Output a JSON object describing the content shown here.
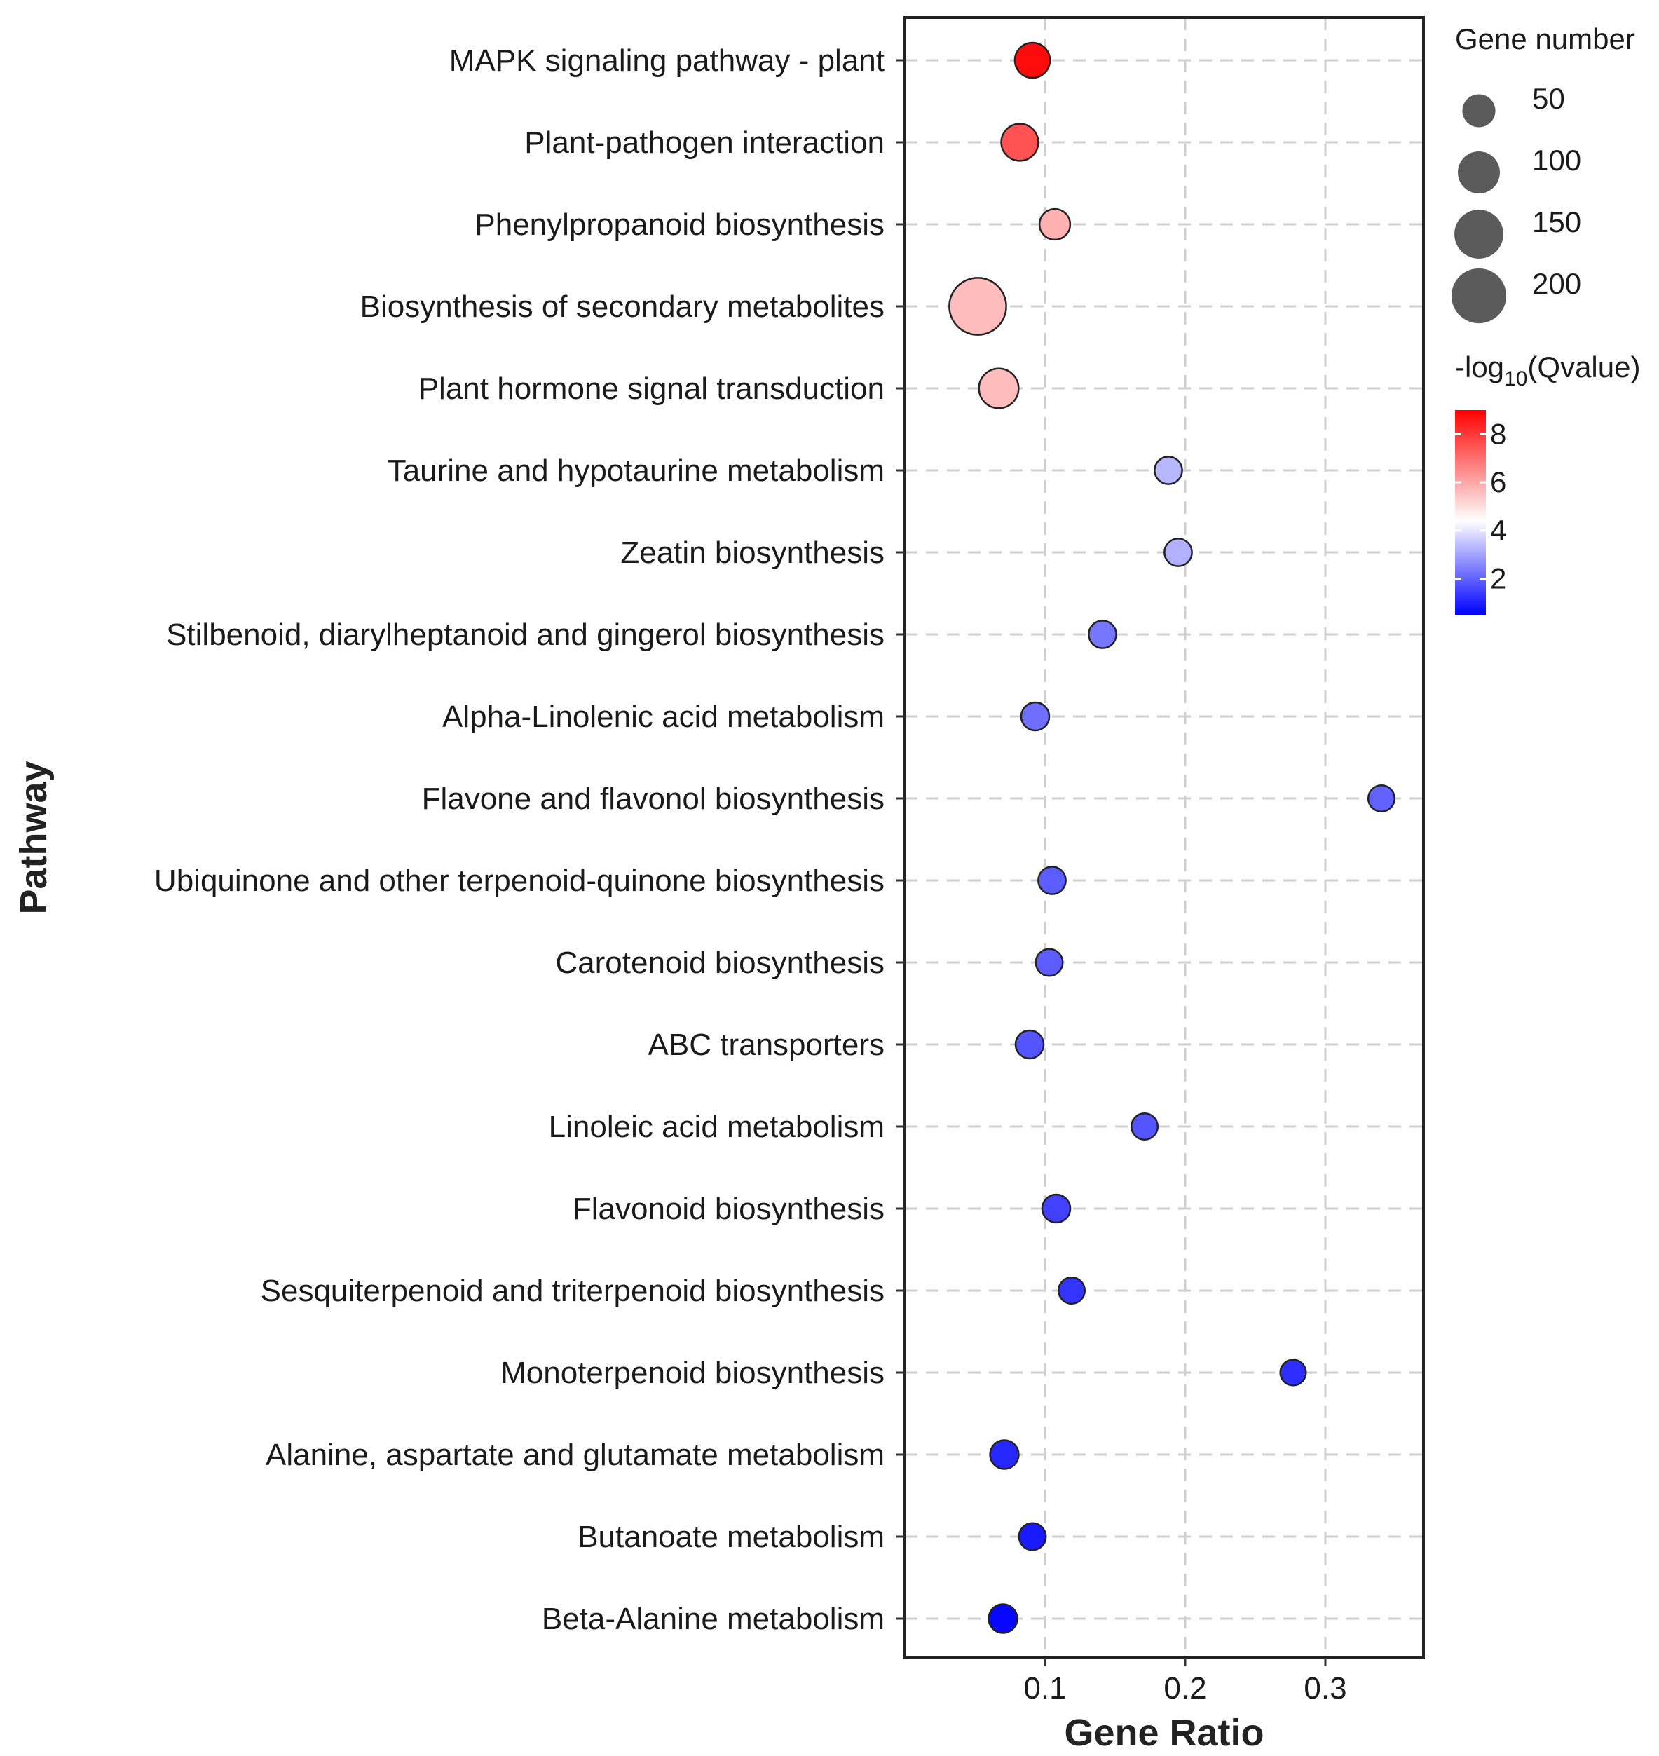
{
  "chart_data": {
    "type": "scatter",
    "title": "",
    "xlabel": "Gene Ratio",
    "ylabel": "Pathway",
    "xlim": [
      0,
      0.37
    ],
    "xticks": [
      0.1,
      0.2,
      0.3
    ],
    "xtick_labels": [
      "0.1",
      "0.2",
      "0.3"
    ],
    "grid": true,
    "categories": [
      "MAPK signaling pathway - plant",
      "Plant-pathogen interaction",
      "Phenylpropanoid biosynthesis",
      "Biosynthesis of secondary metabolites",
      "Plant hormone signal transduction",
      "Taurine and hypotaurine metabolism",
      "Zeatin biosynthesis",
      "Stilbenoid, diarylheptanoid and gingerol biosynthesis",
      "Alpha-Linolenic acid metabolism",
      "Flavone and flavonol biosynthesis",
      "Ubiquinone and other terpenoid-quinone biosynthesis",
      "Carotenoid biosynthesis",
      "ABC transporters",
      "Linoleic acid metabolism",
      "Flavonoid biosynthesis",
      "Sesquiterpenoid and triterpenoid biosynthesis",
      "Monoterpenoid biosynthesis",
      "Alanine, aspartate and glutamate metabolism",
      "Butanoate metabolism",
      "Beta-Alanine metabolism"
    ],
    "gene_ratio": [
      0.091,
      0.082,
      0.107,
      0.052,
      0.067,
      0.188,
      0.195,
      0.141,
      0.093,
      0.34,
      0.105,
      0.103,
      0.089,
      0.171,
      0.108,
      0.119,
      0.277,
      0.071,
      0.091,
      0.07
    ],
    "gene_number": [
      60,
      70,
      40,
      220,
      85,
      28,
      28,
      28,
      30,
      24,
      28,
      26,
      30,
      24,
      30,
      24,
      22,
      32,
      26,
      32
    ],
    "neg_log10_q": [
      8.8,
      7.5,
      5.8,
      5.6,
      5.6,
      3.3,
      3.2,
      2.3,
      2.2,
      2.0,
      1.9,
      1.9,
      1.8,
      1.8,
      1.5,
      1.3,
      1.2,
      1.1,
      0.9,
      0.6
    ],
    "size_legend": {
      "title": "Gene number",
      "values": [
        50,
        100,
        150,
        200
      ]
    },
    "color_legend": {
      "title_prefix": "-log",
      "title_sub": "10",
      "title_suffix": "(Qvalue)",
      "range": [
        0.5,
        9.0
      ],
      "mid": 4.4,
      "ticks": [
        2,
        4,
        6,
        8
      ],
      "low_color": "#0000ff",
      "mid_color": "#ffffff",
      "high_color": "#ff0000"
    },
    "legend_position": "right"
  }
}
